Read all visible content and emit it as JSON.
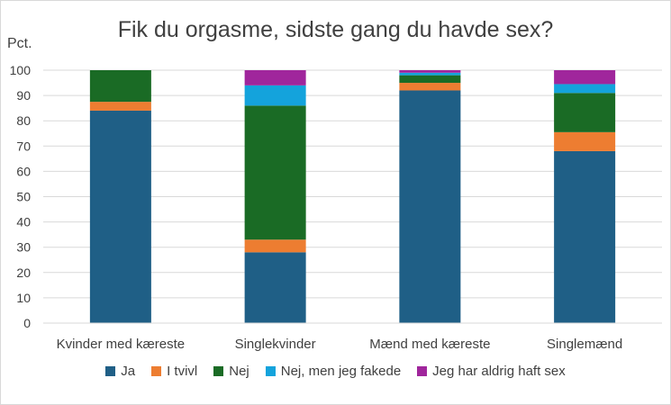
{
  "chart_data": {
    "type": "bar",
    "stacked": true,
    "title": "Fik du orgasme, sidste gang du havde sex?",
    "ylabel": "Pct.",
    "xlabel": "",
    "ylim": [
      0,
      100
    ],
    "yticks": [
      0,
      10,
      20,
      30,
      40,
      50,
      60,
      70,
      80,
      90,
      100
    ],
    "categories": [
      "Kvinder med kæreste",
      "Singlekvinder",
      "Mænd med kæreste",
      "Singlemænd"
    ],
    "series": [
      {
        "name": "Ja",
        "color": "#1f5f86",
        "values": [
          84,
          28,
          92,
          68
        ]
      },
      {
        "name": "I tvivl",
        "color": "#ed7d31",
        "values": [
          3.5,
          5,
          3,
          7.5
        ]
      },
      {
        "name": "Nej",
        "color": "#1a6b25",
        "values": [
          12.5,
          53,
          3,
          15.5
        ]
      },
      {
        "name": "Nej, men jeg fakede",
        "color": "#14a3dc",
        "values": [
          0,
          8,
          1,
          3.5
        ]
      },
      {
        "name": "Jeg har aldrig haft sex",
        "color": "#a0269c",
        "values": [
          0,
          6,
          1,
          5.5
        ]
      }
    ],
    "grid": true,
    "legend_position": "bottom"
  }
}
